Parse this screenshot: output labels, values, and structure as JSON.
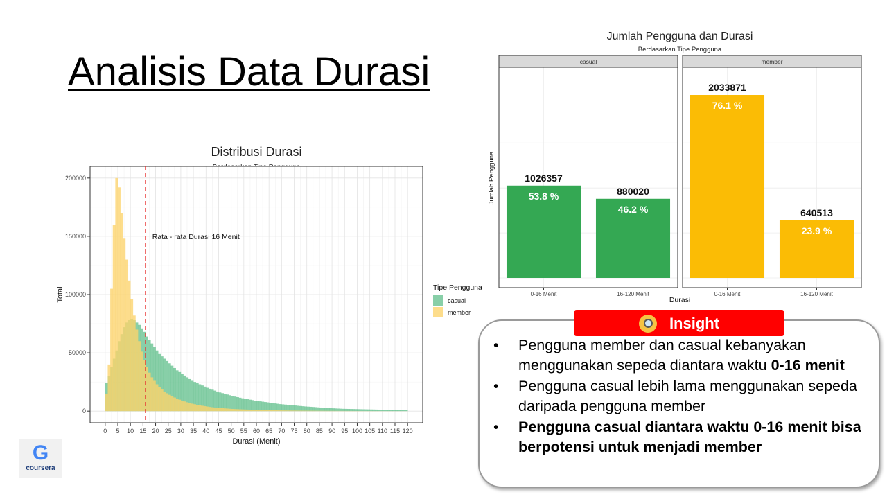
{
  "slide": {
    "title": "Analisis Data Durasi"
  },
  "insight": {
    "header": "Insight",
    "icon": "magnifier-icon",
    "items": [
      {
        "text": "Pengguna member dan casual kebanyakan menggunakan sepeda diantara waktu ",
        "bold_text": "0-16 menit"
      },
      {
        "text": "Pengguna casual lebih lama menggunakan sepeda daripada pengguna member",
        "bold_text": ""
      },
      {
        "text": "",
        "bold_text": "Pengguna casual diantara waktu 0-16 menit bisa berpotensi untuk menjadi member"
      }
    ]
  },
  "logo": {
    "label": "coursera",
    "icon": "google-g-icon"
  },
  "chart_data": [
    {
      "type": "histogram",
      "title": "Distribusi Durasi",
      "subtitle": "Berdasarkan Tipe Pengguna",
      "xlabel": "Durasi (Menit)",
      "ylabel": "Total",
      "xlim": [
        -6,
        126
      ],
      "ylim": [
        -10000,
        210000
      ],
      "x_ticks": [
        0,
        5,
        10,
        15,
        20,
        25,
        30,
        35,
        40,
        45,
        50,
        55,
        60,
        65,
        70,
        75,
        80,
        85,
        90,
        95,
        100,
        105,
        110,
        115,
        120
      ],
      "y_ticks": [
        0,
        50000,
        100000,
        150000,
        200000
      ],
      "y_tick_labels": [
        "0",
        "50000",
        "100000",
        "150000",
        "200000"
      ],
      "grid": true,
      "legend": {
        "title": "Tipe Pengguna",
        "position": "right"
      },
      "reference_line": {
        "x": 16,
        "style": "dashed",
        "color": "#e8312f"
      },
      "annotation": {
        "text": "Rata - rata Durasi 16 Menit",
        "x": 36,
        "y": 150000
      },
      "bin_width": 1,
      "series": [
        {
          "name": "casual",
          "color": "#66c190",
          "bins_start": 0,
          "values": [
            24000,
            30000,
            38000,
            45000,
            52000,
            60000,
            66000,
            72000,
            76000,
            78000,
            79000,
            78000,
            76000,
            74000,
            71000,
            68000,
            64000,
            61000,
            58000,
            55000,
            52000,
            49000,
            47000,
            45000,
            43000,
            41000,
            39000,
            37000,
            35000,
            33500,
            32000,
            30500,
            29000,
            27500,
            26000,
            25000,
            24000,
            23000,
            22000,
            21000,
            20000,
            19200,
            18400,
            17600,
            16800,
            16000,
            15400,
            14800,
            14200,
            13600,
            13000,
            12500,
            12000,
            11500,
            11000,
            10600,
            10200,
            9800,
            9400,
            9000,
            8700,
            8400,
            8100,
            7800,
            7500,
            7200,
            6900,
            6600,
            6300,
            6000,
            5800,
            5600,
            5400,
            5200,
            5000,
            4800,
            4600,
            4400,
            4200,
            4000,
            3850,
            3700,
            3550,
            3400,
            3250,
            3100,
            2950,
            2800,
            2650,
            2500,
            2400,
            2300,
            2200,
            2100,
            2000,
            1950,
            1900,
            1850,
            1800,
            1750,
            1700,
            1650,
            1600,
            1550,
            1500,
            1450,
            1400,
            1350,
            1300,
            1250,
            1200,
            1150,
            1100,
            1050,
            1000,
            960,
            920,
            880,
            840,
            800
          ]
        },
        {
          "name": "member",
          "color": "#fdd36b",
          "bins_start": 0,
          "values": [
            15000,
            40000,
            105000,
            160000,
            200000,
            192000,
            170000,
            148000,
            130000,
            112000,
            96000,
            82000,
            70000,
            60000,
            51000,
            44000,
            38000,
            33000,
            29000,
            26000,
            23000,
            20500,
            18500,
            16800,
            15300,
            14000,
            12800,
            11700,
            10700,
            9800,
            9000,
            8300,
            7600,
            7000,
            6400,
            5900,
            5450,
            5000,
            4600,
            4250,
            3900,
            3600,
            3350,
            3100,
            2900,
            2700,
            2500,
            2350,
            2200,
            2050,
            1900,
            1800,
            1700,
            1600,
            1500,
            1420,
            1340,
            1260,
            1190,
            1120,
            1060,
            1000,
            950,
            900,
            850,
            805,
            760,
            720,
            680,
            640,
            605,
            570,
            540,
            510,
            480,
            455,
            430,
            405,
            380,
            360,
            340,
            322,
            304,
            286,
            270,
            255,
            240,
            226,
            213,
            200,
            190,
            180,
            170,
            161,
            152,
            144,
            136,
            128,
            121,
            114,
            108,
            102,
            96,
            91,
            86,
            81,
            77,
            73,
            69,
            65,
            62,
            59,
            56,
            53,
            50,
            47,
            44,
            42,
            40,
            38
          ]
        }
      ]
    },
    {
      "type": "bar",
      "title": "Jumlah Pengguna dan Durasi",
      "subtitle": "Berdasarkan Tipe Pengguna",
      "xlabel": "Durasi",
      "ylabel": "Jumlah Pengguna",
      "ylim": [
        0,
        2450000
      ],
      "grid": true,
      "facets": [
        {
          "name": "casual",
          "color": "#34a853",
          "categories": [
            "0-16 Menit",
            "16-120 Menit"
          ],
          "values": [
            1026357,
            880020
          ],
          "value_labels": [
            "1026357",
            "880020"
          ],
          "percent_labels": [
            "53.8 %",
            "46.2 %"
          ]
        },
        {
          "name": "member",
          "color": "#fbbc05",
          "categories": [
            "0-16 Menit",
            "16-120 Menit"
          ],
          "values": [
            2033871,
            640513
          ],
          "value_labels": [
            "2033871",
            "640513"
          ],
          "percent_labels": [
            "76.1 %",
            "23.9 %"
          ]
        }
      ]
    }
  ]
}
